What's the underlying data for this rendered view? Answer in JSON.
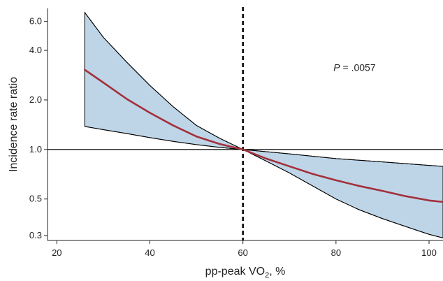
{
  "chart_data": {
    "type": "line",
    "title": "",
    "xlabel": "pp-peak VO",
    "xlabel_subscript": "2",
    "xlabel_suffix": ", %",
    "ylabel": "Incidence rate ratio",
    "y_scale": "log",
    "xlim": [
      18,
      103
    ],
    "ylim": [
      0.28,
      7.2
    ],
    "x_ticks": [
      20,
      40,
      60,
      80,
      100
    ],
    "x_tick_labels": [
      "20",
      "40",
      "60",
      "80",
      "100"
    ],
    "y_ticks": [
      0.3,
      0.5,
      1.0,
      2.0,
      4.0,
      6.0
    ],
    "y_tick_labels": [
      "0.3",
      "0.5",
      "1.0",
      "2.0",
      "4.0",
      "6.0"
    ],
    "reference_lines": {
      "horizontal_y": 1.0,
      "vertical_x": 60
    },
    "annotation": {
      "italic_part": "P",
      "text": " = .0057",
      "x": 84,
      "y": 3.0
    },
    "series": [
      {
        "role": "estimate",
        "color": "#a3303a",
        "x": [
          26,
          30,
          35,
          40,
          45,
          50,
          55,
          60,
          65,
          70,
          75,
          80,
          85,
          90,
          95,
          100,
          103
        ],
        "y": [
          3.05,
          2.55,
          2.03,
          1.67,
          1.4,
          1.2,
          1.08,
          1.0,
          0.88,
          0.79,
          0.71,
          0.65,
          0.6,
          0.56,
          0.52,
          0.49,
          0.48
        ]
      },
      {
        "role": "ci_upper",
        "color": "#000000",
        "x": [
          26,
          30,
          35,
          40,
          45,
          50,
          55,
          60,
          65,
          70,
          75,
          80,
          85,
          90,
          95,
          100,
          103
        ],
        "y": [
          6.8,
          4.8,
          3.4,
          2.45,
          1.82,
          1.4,
          1.17,
          1.0,
          0.97,
          0.94,
          0.91,
          0.88,
          0.86,
          0.84,
          0.82,
          0.8,
          0.79
        ]
      },
      {
        "role": "ci_lower",
        "color": "#000000",
        "x": [
          26,
          30,
          35,
          40,
          45,
          50,
          55,
          60,
          65,
          70,
          75,
          80,
          85,
          90,
          95,
          100,
          103
        ],
        "y": [
          1.38,
          1.32,
          1.25,
          1.18,
          1.12,
          1.07,
          1.03,
          1.0,
          0.85,
          0.72,
          0.6,
          0.5,
          0.43,
          0.38,
          0.34,
          0.305,
          0.29
        ]
      }
    ],
    "band_fill": "#bed5e8",
    "grid": false,
    "legend": "none"
  }
}
